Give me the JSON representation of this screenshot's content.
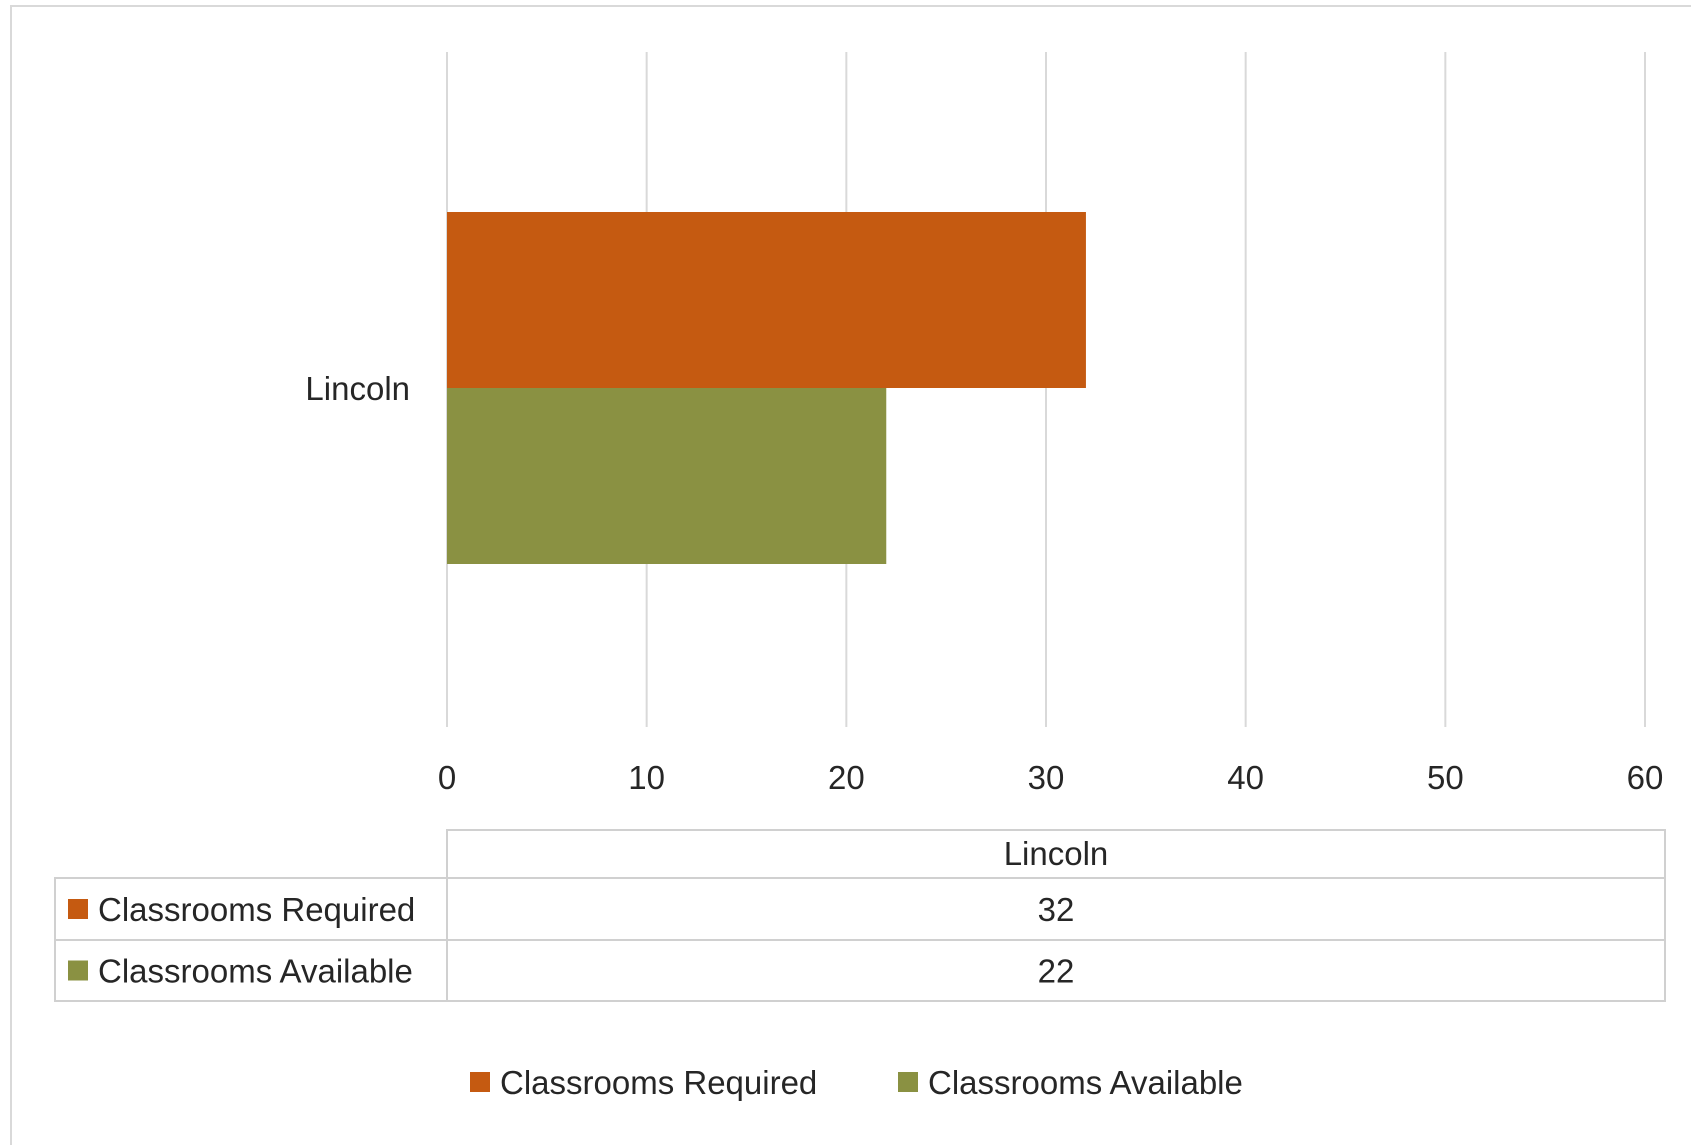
{
  "chart_data": {
    "type": "bar",
    "orientation": "horizontal",
    "title": "",
    "xlabel": "",
    "ylabel": "",
    "categories": [
      "Lincoln"
    ],
    "series": [
      {
        "name": "Classrooms Required",
        "values": [
          32
        ],
        "color": "#c55a11"
      },
      {
        "name": "Classrooms Available",
        "values": [
          22
        ],
        "color": "#8a9142"
      }
    ],
    "xlim": [
      0,
      60
    ],
    "x_ticks": [
      0,
      10,
      20,
      30,
      40,
      50,
      60
    ],
    "grid": true,
    "legend": "bottom",
    "data_table": true
  },
  "colors": {
    "grid": "#d9d9d9",
    "text": "#262626"
  }
}
